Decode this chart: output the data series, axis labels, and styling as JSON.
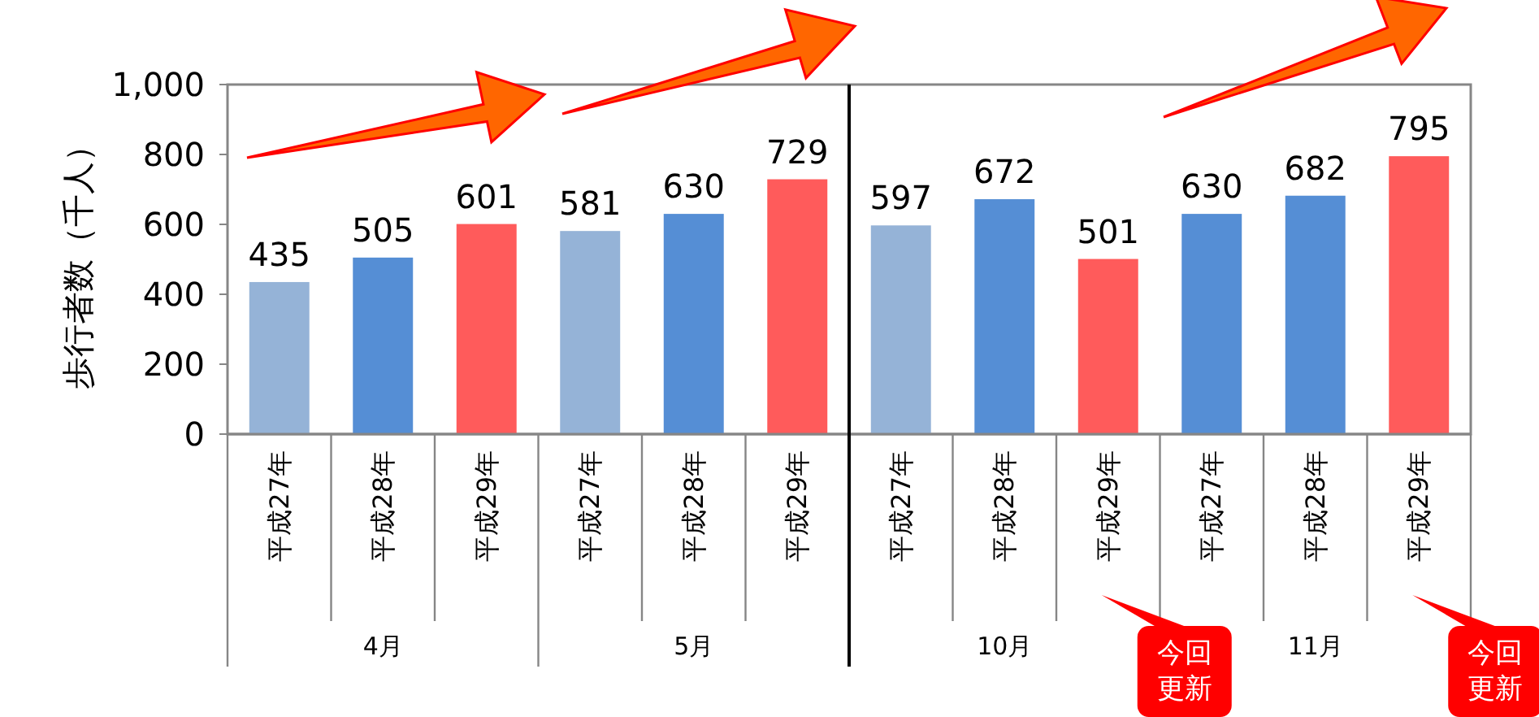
{
  "chart_data": {
    "type": "bar",
    "ylabel": "歩行者数（千人）",
    "categories": [
      "平成27年",
      "平成28年",
      "平成29年",
      "平成27年",
      "平成28年",
      "平成29年",
      "平成27年",
      "平成28年",
      "平成29年",
      "平成27年",
      "平成28年",
      "平成29年"
    ],
    "values": [
      435,
      505,
      601,
      581,
      630,
      729,
      597,
      672,
      501,
      630,
      682,
      795
    ],
    "colors": [
      "#95b3d7",
      "#558ed5",
      "#ff5b5b",
      "#95b3d7",
      "#558ed5",
      "#ff5b5b",
      "#95b3d7",
      "#558ed5",
      "#ff5b5b",
      "#558ed5",
      "#558ed5",
      "#ff5b5b"
    ],
    "ylim": [
      0,
      1000
    ],
    "yticks": [
      0,
      200,
      400,
      600,
      800,
      {
        "value": 1000,
        "label": "1,000"
      }
    ],
    "data_labels": true,
    "grid": false,
    "annotations": [
      "4月",
      "5月",
      "10月",
      "11月",
      "今回更新",
      "今回更新"
    ]
  }
}
